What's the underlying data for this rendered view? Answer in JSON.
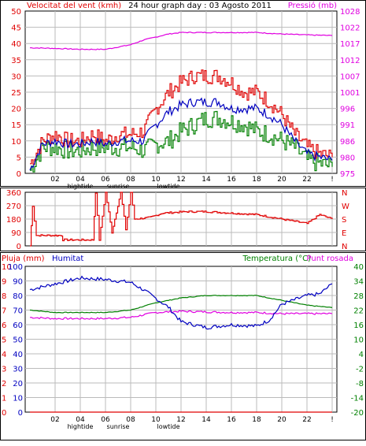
{
  "colors": {
    "red": "#e00000",
    "blue": "#0000c0",
    "green": "#008000",
    "magenta": "#e000e0",
    "grid": "#bbbbbb",
    "axis": "#000000"
  },
  "panel1": {
    "title_left": "Velocitat del vent (kmh)",
    "title_center": "24 hour graph day : 03 Agosto 2011",
    "title_right": "Pressió (mb)",
    "left_ticks": [
      "50",
      "45",
      "40",
      "35",
      "30",
      "25",
      "20",
      "15",
      "10",
      "5",
      "0"
    ],
    "right_ticks": [
      "1028",
      "1022",
      "1017",
      "1012",
      "1007",
      "1001",
      "996",
      "991",
      "986",
      "980",
      "975"
    ],
    "x_ticks": [
      "02",
      "04",
      "06",
      "08",
      "10",
      "12",
      "14",
      "16",
      "18",
      "20",
      "22",
      "!"
    ],
    "markers": [
      "hightide",
      "sunrise",
      "lowtide"
    ]
  },
  "panel2": {
    "left_ticks": [
      "360",
      "270",
      "180",
      "90",
      "0"
    ],
    "right_labels": [
      "N",
      "W",
      "S",
      "E",
      "N"
    ]
  },
  "panel3": {
    "title_left_1": "Pluja (mm)",
    "title_left_2": "Humitat",
    "title_right_1": "Temperatura (°C)",
    "title_right_2": "Punt rosada",
    "left_ticks_outer": [
      "10",
      "9",
      "8",
      "7",
      "6",
      "5",
      "4",
      "3",
      "2",
      "1",
      "0"
    ],
    "left_ticks_inner": [
      "100",
      "90",
      "80",
      "70",
      "60",
      "50",
      "40",
      "30",
      "20",
      "10",
      "0"
    ],
    "right_ticks": [
      "40",
      "34",
      "28",
      "22",
      "16",
      "10",
      "4",
      "-2",
      "-8",
      "-14",
      "-20"
    ],
    "x_ticks": [
      "02",
      "04",
      "06",
      "08",
      "10",
      "12",
      "14",
      "16",
      "18",
      "20",
      "22",
      "!"
    ],
    "markers": [
      "hightide",
      "sunrise",
      "lowtide"
    ]
  },
  "chart_data": [
    {
      "type": "line",
      "x_unit": "hour",
      "ylim_left": [
        0,
        50
      ],
      "ylim_right": [
        975,
        1028
      ],
      "series": [
        {
          "axis": "left",
          "color": "red",
          "values": [
            [
              0,
              3
            ],
            [
              1,
              10
            ],
            [
              2,
              12
            ],
            [
              3,
              10
            ],
            [
              4,
              10
            ],
            [
              5,
              12
            ],
            [
              6,
              10
            ],
            [
              7,
              12
            ],
            [
              8,
              12
            ],
            [
              9,
              13
            ],
            [
              10,
              20
            ],
            [
              11,
              25
            ],
            [
              12,
              28
            ],
            [
              13,
              30
            ],
            [
              14,
              30
            ],
            [
              15,
              30
            ],
            [
              16,
              28
            ],
            [
              17,
              25
            ],
            [
              18,
              25
            ],
            [
              19,
              22
            ],
            [
              20,
              18
            ],
            [
              21,
              12
            ],
            [
              22,
              8
            ],
            [
              23,
              6
            ],
            [
              24,
              5
            ]
          ]
        },
        {
          "axis": "left",
          "color": "blue",
          "values": [
            [
              0,
              1
            ],
            [
              1,
              9
            ],
            [
              2,
              10
            ],
            [
              3,
              9
            ],
            [
              4,
              9
            ],
            [
              5,
              10
            ],
            [
              6,
              9
            ],
            [
              7,
              10
            ],
            [
              8,
              10
            ],
            [
              9,
              10
            ],
            [
              10,
              15
            ],
            [
              11,
              19
            ],
            [
              12,
              21
            ],
            [
              13,
              22
            ],
            [
              14,
              22
            ],
            [
              15,
              22
            ],
            [
              16,
              20
            ],
            [
              17,
              20
            ],
            [
              18,
              20
            ],
            [
              19,
              18
            ],
            [
              20,
              15
            ],
            [
              21,
              10
            ],
            [
              22,
              6
            ],
            [
              23,
              5
            ],
            [
              24,
              4
            ]
          ]
        },
        {
          "axis": "left",
          "color": "green",
          "values": [
            [
              0,
              1
            ],
            [
              1,
              8
            ],
            [
              2,
              8
            ],
            [
              3,
              7
            ],
            [
              4,
              7
            ],
            [
              5,
              8
            ],
            [
              6,
              8
            ],
            [
              7,
              8
            ],
            [
              8,
              8
            ],
            [
              9,
              7
            ],
            [
              10,
              9
            ],
            [
              11,
              10
            ],
            [
              12,
              13
            ],
            [
              13,
              15
            ],
            [
              14,
              17
            ],
            [
              15,
              17
            ],
            [
              16,
              16
            ],
            [
              17,
              15
            ],
            [
              18,
              13
            ],
            [
              19,
              12
            ],
            [
              20,
              10
            ],
            [
              21,
              8
            ],
            [
              22,
              4
            ],
            [
              23,
              3
            ],
            [
              24,
              2
            ]
          ]
        },
        {
          "axis": "right",
          "color": "magenta",
          "values": [
            [
              0,
              1016
            ],
            [
              2,
              1015.8
            ],
            [
              4,
              1015.5
            ],
            [
              6,
              1015.5
            ],
            [
              8,
              1017
            ],
            [
              9,
              1018.5
            ],
            [
              11,
              1020.5
            ],
            [
              12,
              1021
            ],
            [
              14,
              1021
            ],
            [
              16,
              1021
            ],
            [
              18,
              1021
            ],
            [
              20,
              1020.5
            ],
            [
              22,
              1020.2
            ],
            [
              24,
              1020
            ]
          ]
        }
      ]
    },
    {
      "type": "line",
      "x_unit": "hour",
      "ylim": [
        0,
        360
      ],
      "series": [
        {
          "color": "red",
          "values": [
            [
              0,
              0
            ],
            [
              0.2,
              270
            ],
            [
              0.5,
              70
            ],
            [
              2.5,
              70
            ],
            [
              2.6,
              40
            ],
            [
              5,
              40
            ],
            [
              5.2,
              360
            ],
            [
              5.5,
              40
            ],
            [
              6,
              360
            ],
            [
              6.5,
              90
            ],
            [
              7.2,
              360
            ],
            [
              7.6,
              110
            ],
            [
              8,
              360
            ],
            [
              8.3,
              180
            ],
            [
              9.5,
              190
            ],
            [
              10.5,
              220
            ],
            [
              12.5,
              230
            ],
            [
              14,
              230
            ],
            [
              18,
              210
            ],
            [
              20,
              180
            ],
            [
              22,
              150
            ],
            [
              23,
              210
            ],
            [
              24,
              180
            ]
          ]
        }
      ]
    },
    {
      "type": "line",
      "x_unit": "hour",
      "ylim_left": [
        0,
        100
      ],
      "ylim_right": [
        -20,
        40
      ],
      "series": [
        {
          "axis": "left",
          "color": "red",
          "name": "",
          "values": [
            [
              0,
              0
            ],
            [
              24,
              0
            ]
          ]
        },
        {
          "axis": "left",
          "color": "blue",
          "values": [
            [
              0,
              84
            ],
            [
              2,
              88
            ],
            [
              4,
              92
            ],
            [
              6,
              91
            ],
            [
              8,
              89
            ],
            [
              9,
              84
            ],
            [
              10,
              78
            ],
            [
              11,
              72
            ],
            [
              12,
              62
            ],
            [
              14,
              58
            ],
            [
              16,
              60
            ],
            [
              18,
              59
            ],
            [
              19,
              63
            ],
            [
              20,
              74
            ],
            [
              22,
              80
            ],
            [
              23,
              81
            ],
            [
              24,
              88
            ]
          ]
        },
        {
          "axis": "right",
          "color": "green",
          "values": [
            [
              0,
              22
            ],
            [
              2,
              21
            ],
            [
              4,
              21
            ],
            [
              6,
              21
            ],
            [
              8,
              22
            ],
            [
              10,
              25
            ],
            [
              12,
              27
            ],
            [
              14,
              28
            ],
            [
              16,
              28
            ],
            [
              18,
              28
            ],
            [
              20,
              26
            ],
            [
              22,
              24
            ],
            [
              24,
              23
            ]
          ]
        },
        {
          "axis": "right",
          "color": "magenta",
          "values": [
            [
              0,
              19
            ],
            [
              2,
              18.5
            ],
            [
              4,
              18.5
            ],
            [
              6,
              18.5
            ],
            [
              8,
              19
            ],
            [
              10,
              21
            ],
            [
              12,
              21.5
            ],
            [
              16,
              21
            ],
            [
              18,
              21
            ],
            [
              20,
              20.5
            ],
            [
              22,
              20.5
            ],
            [
              24,
              20.5
            ]
          ]
        }
      ]
    }
  ]
}
